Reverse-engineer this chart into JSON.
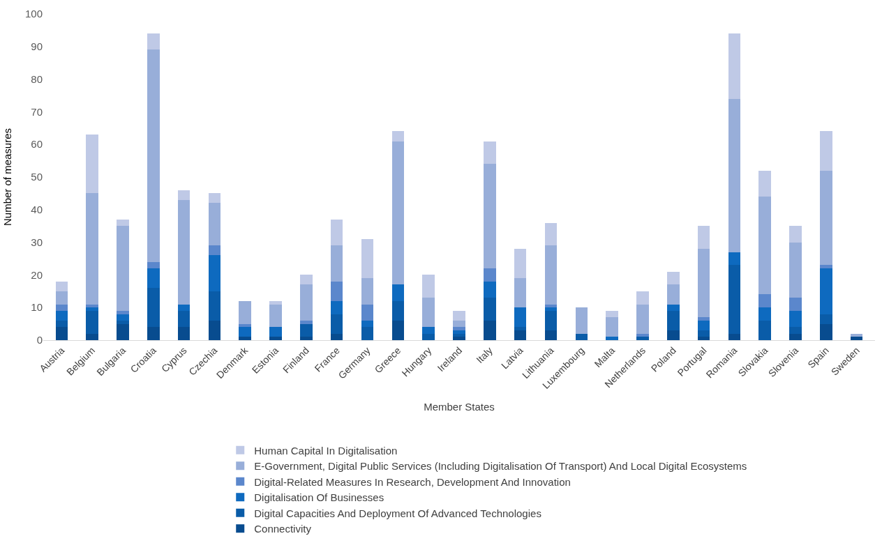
{
  "chart_data": {
    "type": "bar",
    "stacked": true,
    "xlabel": "Member States",
    "ylabel": "Number of measures",
    "categories": [
      "Austria",
      "Belgium",
      "Bulgaria",
      "Croatia",
      "Cyprus",
      "Czechia",
      "Denmark",
      "Estonia",
      "Finland",
      "France",
      "Germany",
      "Greece",
      "Hungary",
      "Ireland",
      "Italy",
      "Latvia",
      "Lithuania",
      "Luxembourg",
      "Malta",
      "Netherlands",
      "Poland",
      "Portugal",
      "Romania",
      "Slovakia",
      "Slovenia",
      "Spain",
      "Sweden"
    ],
    "series": [
      {
        "name": "Connectivity",
        "color": "#084c8f",
        "values": [
          4,
          2,
          5,
          4,
          4,
          6,
          1,
          1,
          1,
          2,
          0,
          6,
          0,
          1,
          6,
          3,
          3,
          0,
          0,
          0,
          3,
          1,
          2,
          0,
          2,
          5,
          1
        ]
      },
      {
        "name": "Digital Capacities And Deployment Of Advanced Technologies",
        "color": "#0a5ca8",
        "values": [
          2,
          7,
          1,
          12,
          5,
          9,
          0,
          0,
          4,
          6,
          4,
          6,
          2,
          1,
          7,
          1,
          6,
          2,
          0,
          1,
          6,
          2,
          21,
          6,
          2,
          3,
          0
        ]
      },
      {
        "name": "Digitalisation Of Businesses",
        "color": "#0e6abf",
        "values": [
          3,
          1,
          2,
          6,
          2,
          11,
          3,
          3,
          0,
          4,
          2,
          5,
          2,
          1,
          5,
          6,
          1,
          0,
          1,
          0,
          2,
          3,
          4,
          4,
          5,
          14,
          0
        ]
      },
      {
        "name": "Digital-Related Measures In Research, Development And Innovation",
        "color": "#5b87cc",
        "values": [
          2,
          1,
          1,
          2,
          0,
          3,
          1,
          0,
          1,
          6,
          5,
          0,
          0,
          1,
          4,
          0,
          1,
          0,
          0,
          1,
          0,
          1,
          0,
          4,
          4,
          1,
          0
        ]
      },
      {
        "name": "E-Government, Digital Public Services (Including Digitalisation Of Transport) And Local Digital Ecosystems",
        "color": "#98aed9",
        "values": [
          4,
          34,
          26,
          65,
          32,
          13,
          7,
          7,
          11,
          11,
          8,
          44,
          9,
          2,
          32,
          9,
          18,
          8,
          6,
          9,
          6,
          21,
          47,
          30,
          17,
          29,
          1
        ]
      },
      {
        "name": "Human Capital In Digitalisation",
        "color": "#bfc9e6",
        "values": [
          3,
          18,
          2,
          5,
          3,
          3,
          0,
          1,
          3,
          8,
          12,
          3,
          7,
          3,
          7,
          9,
          7,
          0,
          2,
          4,
          4,
          7,
          20,
          8,
          5,
          12,
          0
        ]
      }
    ],
    "ylim": [
      0,
      100
    ],
    "yticks": [
      0,
      10,
      20,
      30,
      40,
      50,
      60,
      70,
      80,
      90,
      100
    ],
    "grid": false,
    "legend": "bottom"
  }
}
